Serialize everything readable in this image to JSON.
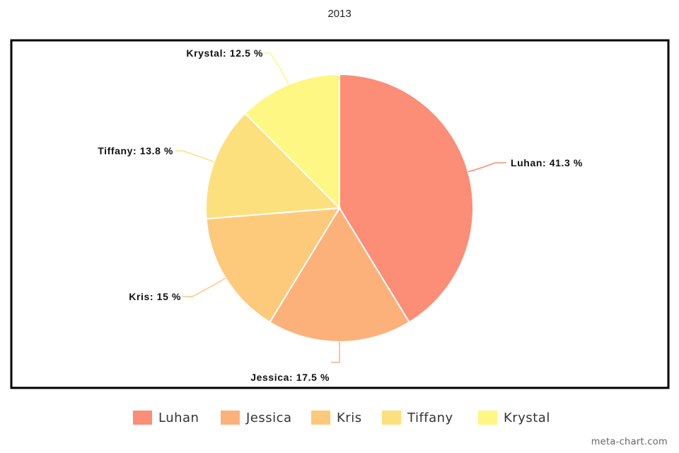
{
  "chart_data": {
    "type": "pie",
    "title": "2013",
    "slices": [
      {
        "label": "Luhan",
        "value": 41.3,
        "color": "#fc8d77",
        "display": "Luhan: 41.3 %"
      },
      {
        "label": "Jessica",
        "value": 17.5,
        "color": "#fdb17a",
        "display": "Jessica: 17.5 %"
      },
      {
        "label": "Kris",
        "value": 15,
        "color": "#fdc97b",
        "display": "Kris: 15 %"
      },
      {
        "label": "Tiffany",
        "value": 13.8,
        "color": "#fde07e",
        "display": "Tiffany: 13.8 %"
      },
      {
        "label": "Krystal",
        "value": 12.5,
        "color": "#fef783",
        "display": "Krystal: 12.5 %"
      }
    ],
    "legend_placement": "bottom"
  },
  "watermark": "meta-chart.com"
}
